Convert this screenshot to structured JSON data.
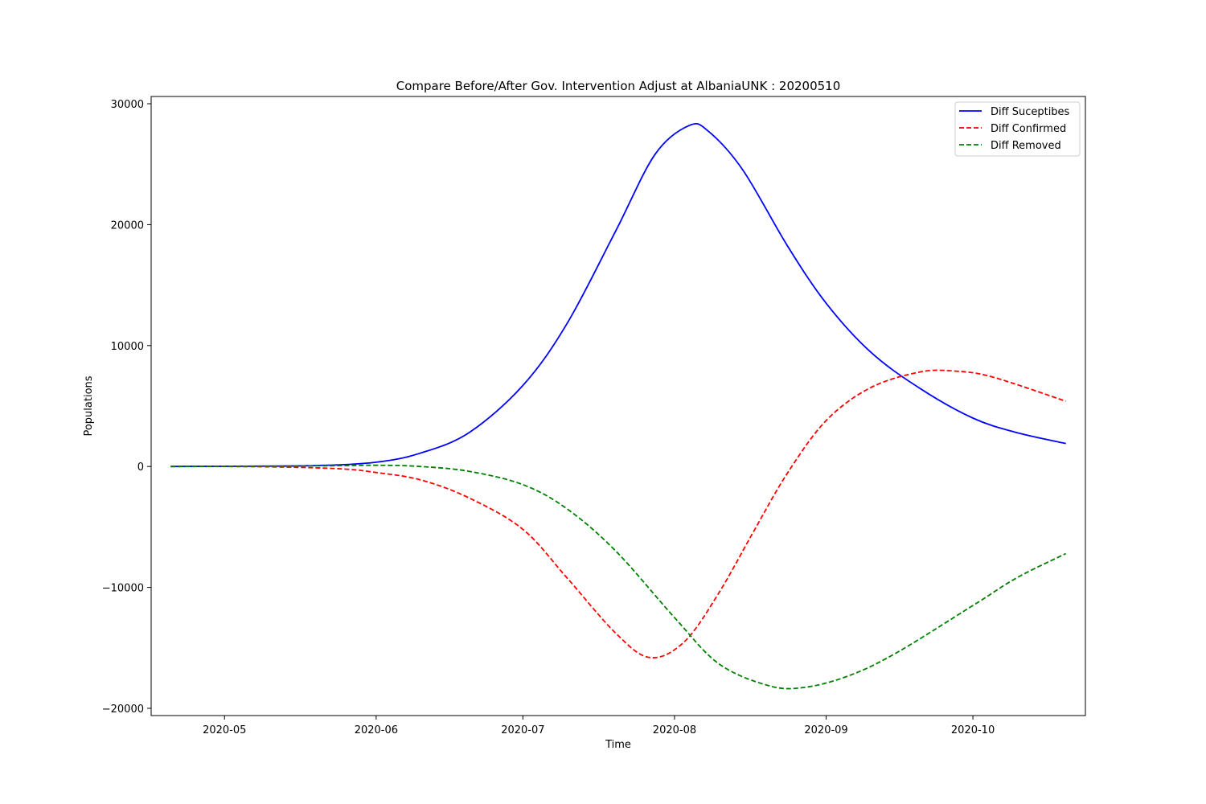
{
  "chart_data": {
    "type": "line",
    "title": "Compare Before/After Gov. Intervention Adjust at AlbaniaUNK : 20200510",
    "xlabel": "Time",
    "ylabel": "Populations",
    "xlim": [
      "2020-04-16",
      "2020-10-24"
    ],
    "ylim": [
      -20600,
      30600
    ],
    "x_ticks": [
      "2020-05",
      "2020-06",
      "2020-07",
      "2020-08",
      "2020-09",
      "2020-10"
    ],
    "x_tick_dates": [
      "2020-05-01",
      "2020-06-01",
      "2020-07-01",
      "2020-08-01",
      "2020-09-01",
      "2020-10-01"
    ],
    "y_ticks": [
      -20000,
      -10000,
      0,
      10000,
      20000,
      30000
    ],
    "y_tick_labels": [
      "−20000",
      "−10000",
      "0",
      "10000",
      "20000",
      "30000"
    ],
    "grid": false,
    "legend_position": "top-right",
    "series": [
      {
        "name": "Diff Suceptibes",
        "color": "#0000ff",
        "dash": "solid",
        "points": [
          [
            "2020-04-20",
            0
          ],
          [
            "2020-05-05",
            20
          ],
          [
            "2020-05-20",
            80
          ],
          [
            "2020-06-01",
            350
          ],
          [
            "2020-06-10",
            1100
          ],
          [
            "2020-06-20",
            2800
          ],
          [
            "2020-07-01",
            6700
          ],
          [
            "2020-07-10",
            11800
          ],
          [
            "2020-07-20",
            19500
          ],
          [
            "2020-07-28",
            25800
          ],
          [
            "2020-08-04",
            28200
          ],
          [
            "2020-08-08",
            27700
          ],
          [
            "2020-08-15",
            24500
          ],
          [
            "2020-08-24",
            18300
          ],
          [
            "2020-09-01",
            13500
          ],
          [
            "2020-09-10",
            9500
          ],
          [
            "2020-09-20",
            6500
          ],
          [
            "2020-10-01",
            4000
          ],
          [
            "2020-10-10",
            2800
          ],
          [
            "2020-10-20",
            1900
          ]
        ]
      },
      {
        "name": "Diff Confirmed",
        "color": "#ff0000",
        "dash": "dashed",
        "points": [
          [
            "2020-04-20",
            0
          ],
          [
            "2020-05-10",
            -30
          ],
          [
            "2020-05-25",
            -200
          ],
          [
            "2020-06-01",
            -500
          ],
          [
            "2020-06-10",
            -1100
          ],
          [
            "2020-06-20",
            -2600
          ],
          [
            "2020-07-01",
            -5200
          ],
          [
            "2020-07-10",
            -9200
          ],
          [
            "2020-07-20",
            -13800
          ],
          [
            "2020-07-27",
            -15800
          ],
          [
            "2020-08-03",
            -14500
          ],
          [
            "2020-08-10",
            -10500
          ],
          [
            "2020-08-17",
            -5500
          ],
          [
            "2020-08-24",
            -600
          ],
          [
            "2020-09-01",
            3800
          ],
          [
            "2020-09-10",
            6500
          ],
          [
            "2020-09-20",
            7800
          ],
          [
            "2020-09-27",
            7900
          ],
          [
            "2020-10-05",
            7400
          ],
          [
            "2020-10-20",
            5400
          ]
        ]
      },
      {
        "name": "Diff Removed",
        "color": "#008000",
        "dash": "dashed",
        "points": [
          [
            "2020-04-20",
            0
          ],
          [
            "2020-05-20",
            50
          ],
          [
            "2020-06-01",
            100
          ],
          [
            "2020-06-10",
            0
          ],
          [
            "2020-06-20",
            -400
          ],
          [
            "2020-07-01",
            -1500
          ],
          [
            "2020-07-10",
            -3500
          ],
          [
            "2020-07-20",
            -7000
          ],
          [
            "2020-08-01",
            -12500
          ],
          [
            "2020-08-10",
            -16300
          ],
          [
            "2020-08-20",
            -18100
          ],
          [
            "2020-08-27",
            -18300
          ],
          [
            "2020-09-05",
            -17400
          ],
          [
            "2020-09-15",
            -15500
          ],
          [
            "2020-10-01",
            -11500
          ],
          [
            "2020-10-10",
            -9200
          ],
          [
            "2020-10-20",
            -7200
          ]
        ]
      }
    ]
  }
}
